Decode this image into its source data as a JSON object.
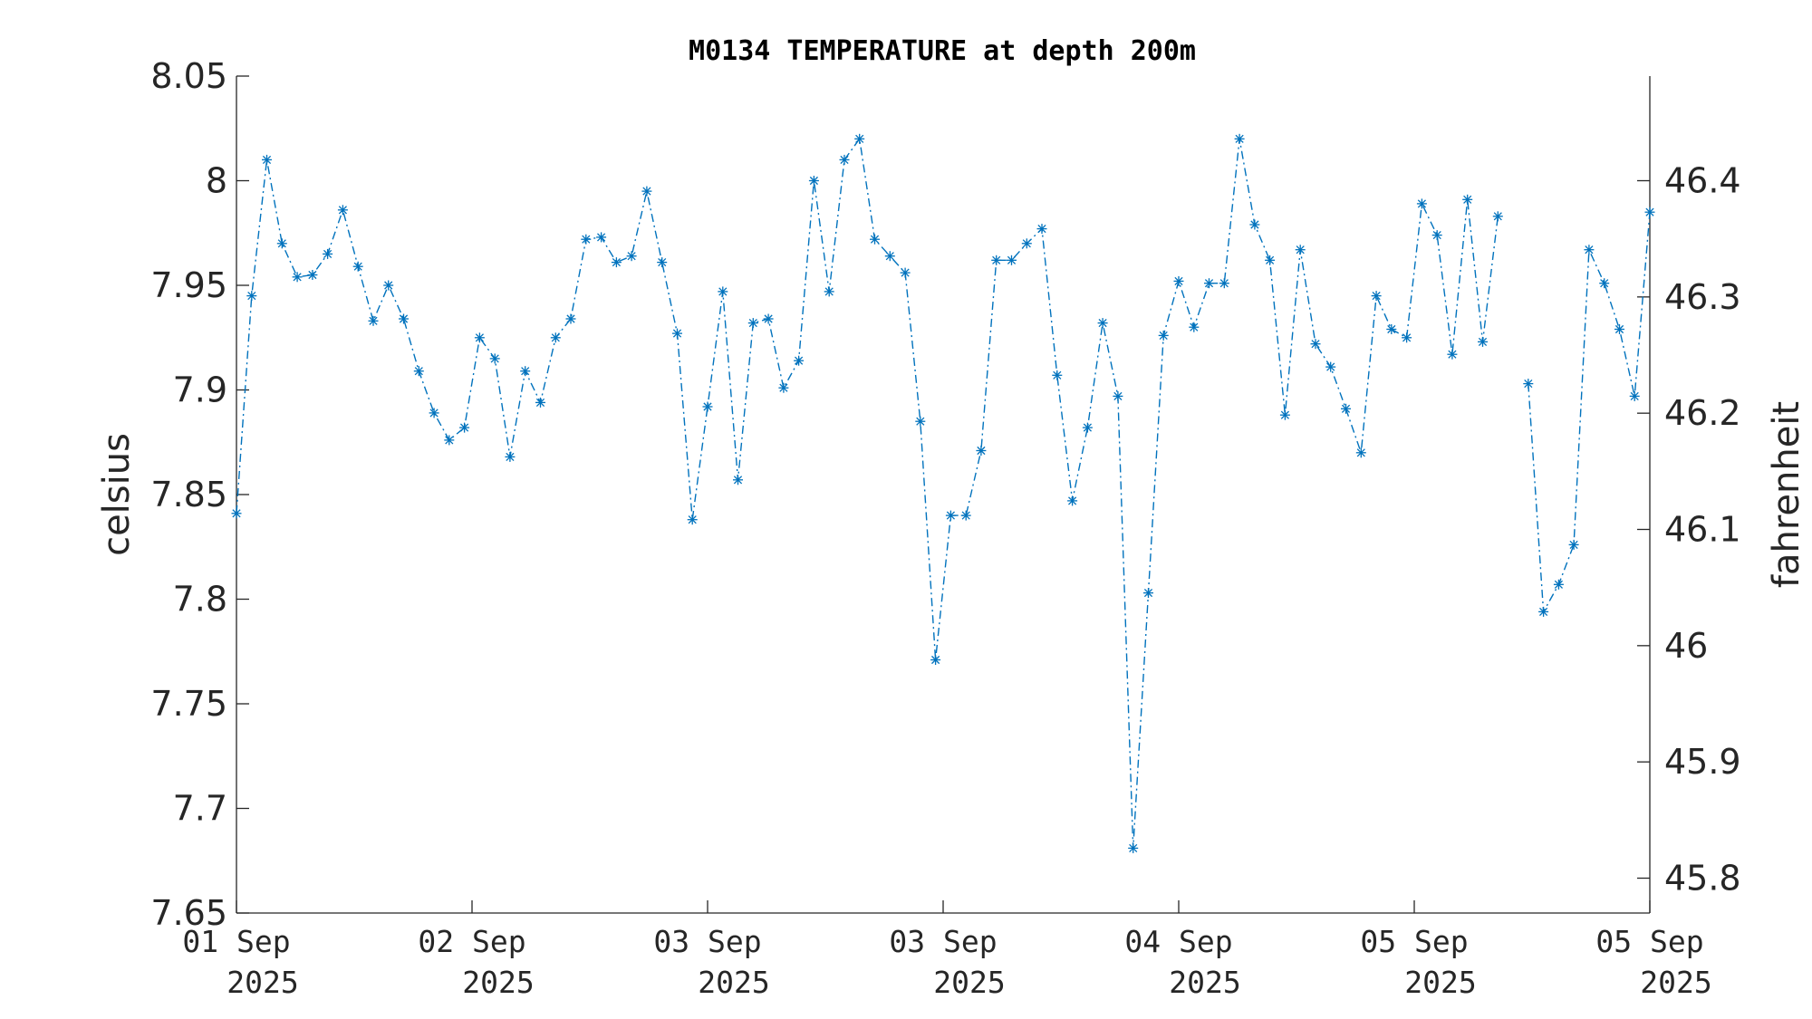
{
  "chart_data": {
    "type": "line",
    "title": "M0134 TEMPERATURE at depth 200m",
    "ylabel": "celsius",
    "y2label": "fahrenheit",
    "ylim": [
      7.65,
      8.05
    ],
    "y2lim": [
      45.77,
      46.49
    ],
    "yticks": [
      "7.65",
      "7.7",
      "7.75",
      "7.8",
      "7.85",
      "7.9",
      "7.95",
      "8",
      "8.05"
    ],
    "y2ticks": [
      "45.8",
      "45.9",
      "46",
      "46.1",
      "46.2",
      "46.3",
      "46.4"
    ],
    "xticks": [
      {
        "line1": "01 Sep",
        "line2": "2025"
      },
      {
        "line1": "02 Sep",
        "line2": "2025"
      },
      {
        "line1": "03 Sep",
        "line2": "2025"
      },
      {
        "line1": "03 Sep",
        "line2": "2025"
      },
      {
        "line1": "04 Sep",
        "line2": "2025"
      },
      {
        "line1": "05 Sep",
        "line2": "2025"
      },
      {
        "line1": "05 Sep",
        "line2": "2025"
      }
    ],
    "grid": false,
    "line_style": "dash-dot",
    "marker": "asterisk",
    "color": "#0072BD",
    "segments": [
      [
        7.841,
        7.945,
        8.01,
        7.97,
        7.954,
        7.955,
        7.965,
        7.986,
        7.959,
        7.933,
        7.95,
        7.934,
        7.909,
        7.889,
        7.876,
        7.882,
        7.925,
        7.915,
        7.868,
        7.909,
        7.894,
        7.925,
        7.934,
        7.972,
        7.973,
        7.961,
        7.964,
        7.995,
        7.961,
        7.927,
        7.838,
        7.892,
        7.947,
        7.857,
        7.932,
        7.934,
        7.901,
        7.914,
        8.0,
        7.947,
        8.01,
        8.02,
        7.972,
        7.964,
        7.956,
        7.885,
        7.771,
        7.84,
        7.84,
        7.871,
        7.962,
        7.962,
        7.97,
        7.977,
        7.907,
        7.847,
        7.882,
        7.932,
        7.897,
        7.681,
        7.803,
        7.926,
        7.952,
        7.93,
        7.951,
        7.951,
        8.02,
        7.979,
        7.962,
        7.888,
        7.967,
        7.922,
        7.911,
        7.891,
        7.87,
        7.945,
        7.929,
        7.925,
        7.989,
        7.974,
        7.917,
        7.991,
        7.923,
        7.983
      ],
      [
        7.903,
        7.794,
        7.807,
        7.826,
        7.967,
        7.951,
        7.929,
        7.897,
        7.985
      ]
    ]
  }
}
